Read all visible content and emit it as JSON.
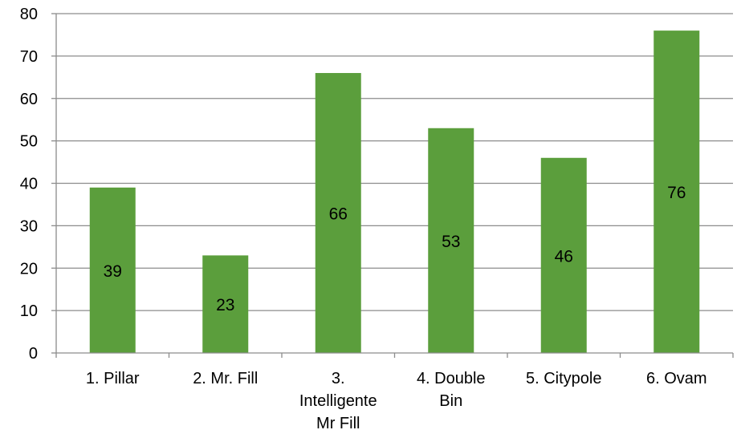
{
  "chart_data": {
    "type": "bar",
    "categories": [
      [
        "1. Pillar"
      ],
      [
        "2. Mr. Fill"
      ],
      [
        "3.",
        "Intelligente",
        "Mr Fill"
      ],
      [
        "4. Double",
        "Bin"
      ],
      [
        "5. Citypole"
      ],
      [
        "6. Ovam"
      ]
    ],
    "values": [
      39,
      23,
      66,
      53,
      46,
      76
    ],
    "data_labels": [
      "39",
      "23",
      "66",
      "53",
      "46",
      "76"
    ],
    "ylim": [
      0,
      80
    ],
    "yticks": [
      0,
      10,
      20,
      30,
      40,
      50,
      60,
      70,
      80
    ],
    "title": "",
    "xlabel": "",
    "ylabel": "",
    "grid": true,
    "legend": "none",
    "colors": {
      "bar": "#5b9e3c",
      "grid": "#8c8c8c",
      "axis": "#8c8c8c"
    }
  }
}
